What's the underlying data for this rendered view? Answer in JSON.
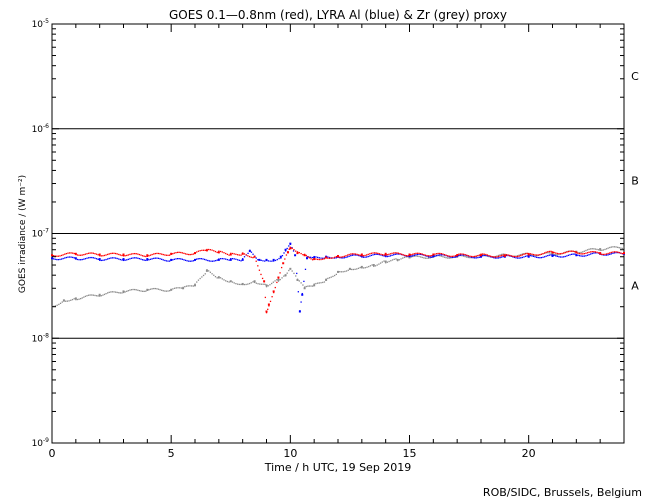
{
  "chart_data": {
    "type": "scatter",
    "title": "GOES 0.1—0.8nm (red), LYRA Al (blue) & Zr (grey) proxy",
    "xlabel": "Time / h UTC, 19 Sep 2019",
    "ylabel": "GOES irradiance / (W m⁻²)",
    "xlim": [
      0,
      24
    ],
    "ylim": [
      1e-09,
      1e-05
    ],
    "y_scale": "log",
    "x_ticks": [
      0,
      5,
      10,
      15,
      20
    ],
    "y_ticks": [
      {
        "value": 1e-05,
        "base": "10",
        "exp": "-5"
      },
      {
        "value": 1e-06,
        "base": "10",
        "exp": "-6"
      },
      {
        "value": 1e-07,
        "base": "10",
        "exp": "-7"
      },
      {
        "value": 1e-08,
        "base": "10",
        "exp": "-8"
      },
      {
        "value": 1e-09,
        "base": "10",
        "exp": "-9"
      }
    ],
    "class_lines": [
      1e-06,
      1e-07,
      1e-08
    ],
    "flare_classes": [
      {
        "label": "C",
        "value": 3.2e-06
      },
      {
        "label": "B",
        "value": 3.2e-07
      },
      {
        "label": "A",
        "value": 3.2e-08
      }
    ],
    "series": [
      {
        "name": "GOES 0.1—0.8nm",
        "color": "#ff0000",
        "x": [
          0,
          1,
          2,
          3,
          4,
          5,
          6,
          6.5,
          7,
          7.5,
          8,
          8.5,
          8.9,
          9.0,
          9.1,
          9.3,
          9.5,
          9.7,
          9.9,
          10.0,
          10.3,
          10.6,
          11.0,
          11.5,
          12,
          13,
          14,
          15,
          16,
          17,
          18,
          19,
          20,
          21,
          22,
          23,
          24
        ],
        "y": [
          6.2e-08,
          6.4e-08,
          6.3e-08,
          6.3e-08,
          6.2e-08,
          6.4e-08,
          6.5e-08,
          6.9e-08,
          6.6e-08,
          6.3e-08,
          6.4e-08,
          6e-08,
          3.5e-08,
          1.8e-08,
          2.1e-08,
          2.8e-08,
          3.8e-08,
          5.2e-08,
          6.6e-08,
          7.2e-08,
          6.5e-08,
          6.2e-08,
          5.7e-08,
          5.9e-08,
          6.1e-08,
          6.3e-08,
          6.4e-08,
          6.3e-08,
          6.3e-08,
          6.2e-08,
          6.2e-08,
          6.1e-08,
          6.3e-08,
          6.6e-08,
          6.6e-08,
          6.5e-08,
          6.5e-08
        ]
      },
      {
        "name": "LYRA Al",
        "color": "#0000ff",
        "x": [
          0,
          1,
          2,
          3,
          4,
          5,
          6,
          7,
          7.5,
          8,
          8.3,
          8.7,
          9.0,
          9.3,
          9.6,
          9.8,
          10.0,
          10.2,
          10.4,
          10.5,
          10.7,
          11.0,
          11.5,
          12,
          13,
          14,
          15,
          16,
          17,
          18,
          19,
          20,
          21,
          22,
          23,
          24
        ],
        "y": [
          5.8e-08,
          5.8e-08,
          5.7e-08,
          5.7e-08,
          5.7e-08,
          5.6e-08,
          5.6e-08,
          5.6e-08,
          5.6e-08,
          5.6e-08,
          6.8e-08,
          5.6e-08,
          5.6e-08,
          5.6e-08,
          6e-08,
          7e-08,
          8e-08,
          6.2e-08,
          1.8e-08,
          2.6e-08,
          5.8e-08,
          5.9e-08,
          6e-08,
          6e-08,
          6.1e-08,
          6.2e-08,
          6.2e-08,
          6.1e-08,
          6.1e-08,
          6e-08,
          6e-08,
          6e-08,
          6.1e-08,
          6.2e-08,
          6.4e-08,
          6.4e-08
        ]
      },
      {
        "name": "LYRA Zr proxy",
        "color": "#8c8c8c",
        "x": [
          0,
          0.5,
          1,
          2,
          3,
          4,
          5,
          5.5,
          6,
          6.5,
          7,
          7.5,
          8,
          8.5,
          9,
          9.5,
          9.8,
          10,
          10.3,
          10.6,
          11,
          11.5,
          12,
          12.5,
          13,
          13.5,
          14,
          14.5,
          15,
          16,
          17,
          18,
          19,
          20,
          21,
          22,
          23,
          24
        ],
        "y": [
          2e-08,
          2.3e-08,
          2.4e-08,
          2.6e-08,
          2.8e-08,
          2.9e-08,
          2.9e-08,
          3e-08,
          3.2e-08,
          4.4e-08,
          3.8e-08,
          3.5e-08,
          3.3e-08,
          3.5e-08,
          3.2e-08,
          3.6e-08,
          4e-08,
          4.6e-08,
          3.6e-08,
          3e-08,
          3.2e-08,
          3.6e-08,
          4.3e-08,
          4.6e-08,
          4.8e-08,
          5e-08,
          5.4e-08,
          5.6e-08,
          5.9e-08,
          6e-08,
          6e-08,
          6.1e-08,
          6.2e-08,
          6.3e-08,
          6.4e-08,
          6.7e-08,
          7.1e-08,
          7.4e-08
        ]
      }
    ],
    "grid": false,
    "legend": "none"
  },
  "footer": {
    "credit": "ROB/SIDC, Brussels, Belgium"
  }
}
